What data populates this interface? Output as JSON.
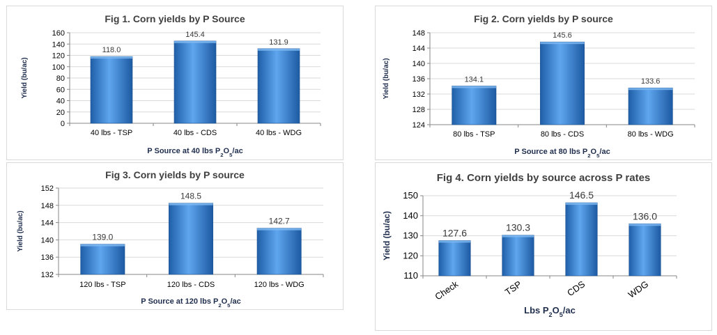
{
  "chart_data": [
    {
      "type": "bar",
      "title": "Fig 1. Corn yields by P  Source",
      "ylabel": "Yield (bu/ac)",
      "xlabel": "P Source at 40 lbs P2O5/ac",
      "xlabel_parts": [
        "P Source at 40 lbs P",
        "2",
        "O",
        "5",
        "/ac"
      ],
      "categories": [
        "40 lbs - TSP",
        "40 lbs  - CDS",
        "40 lbs  - WDG"
      ],
      "values": [
        118.0,
        145.4,
        131.9
      ],
      "value_labels": [
        "118.0",
        "145.4",
        "131.9"
      ],
      "ylim": [
        0,
        160
      ],
      "yticks": [
        0,
        20,
        40,
        60,
        80,
        100,
        120,
        140,
        160
      ],
      "grid": true,
      "bar_color": "#2f78c8"
    },
    {
      "type": "bar",
      "title": "Fig 2. Corn yields by P source",
      "ylabel": "Yield (bu/ac)",
      "xlabel": "P Source at 80 lbs P2O5/ac",
      "xlabel_parts": [
        "P Source at 80 lbs P",
        "2",
        "O",
        "5",
        "/ac"
      ],
      "categories": [
        "80 lbs - TSP",
        "80 lbs  - CDS",
        "80 lbs  - WDG"
      ],
      "values": [
        134.1,
        145.6,
        133.6
      ],
      "value_labels": [
        "134.1",
        "145.6",
        "133.6"
      ],
      "ylim": [
        124,
        148
      ],
      "yticks": [
        124,
        128,
        132,
        136,
        140,
        144,
        148
      ],
      "grid": true,
      "bar_color": "#2f78c8"
    },
    {
      "type": "bar",
      "title": "Fig 3. Corn yields by P source",
      "ylabel": "Yield (bu/ac)",
      "xlabel": "P Source at 120 lbs P2O5/ac",
      "xlabel_parts": [
        "P Source at 120 lbs P",
        "2",
        "O",
        "5",
        "/ac"
      ],
      "categories": [
        "120 lbs - TSP",
        "120 lbs  - CDS",
        "120 lbs  - WDG"
      ],
      "values": [
        139.0,
        148.5,
        142.7
      ],
      "value_labels": [
        "139.0",
        "148.5",
        "142.7"
      ],
      "ylim": [
        132,
        152
      ],
      "yticks": [
        132,
        136,
        140,
        144,
        148,
        152
      ],
      "grid": true,
      "bar_color": "#2f78c8"
    },
    {
      "type": "bar",
      "title": "Fig 4. Corn yields by source across P rates",
      "ylabel": "Yield (bu/ac)",
      "xlabel": "Lbs P2O5/ac",
      "xlabel_parts": [
        "Lbs P",
        "2",
        "O",
        "5",
        "/ac"
      ],
      "categories": [
        "Check",
        "TSP",
        "CDS",
        "WDG"
      ],
      "values": [
        127.6,
        130.3,
        146.5,
        136.0
      ],
      "value_labels": [
        "127.6",
        "130.3",
        "146.5",
        "136.0"
      ],
      "ylim": [
        110,
        150
      ],
      "yticks": [
        110,
        120,
        130,
        140,
        150
      ],
      "grid": true,
      "bar_color": "#2f78c8",
      "rotated_categories": true
    }
  ]
}
